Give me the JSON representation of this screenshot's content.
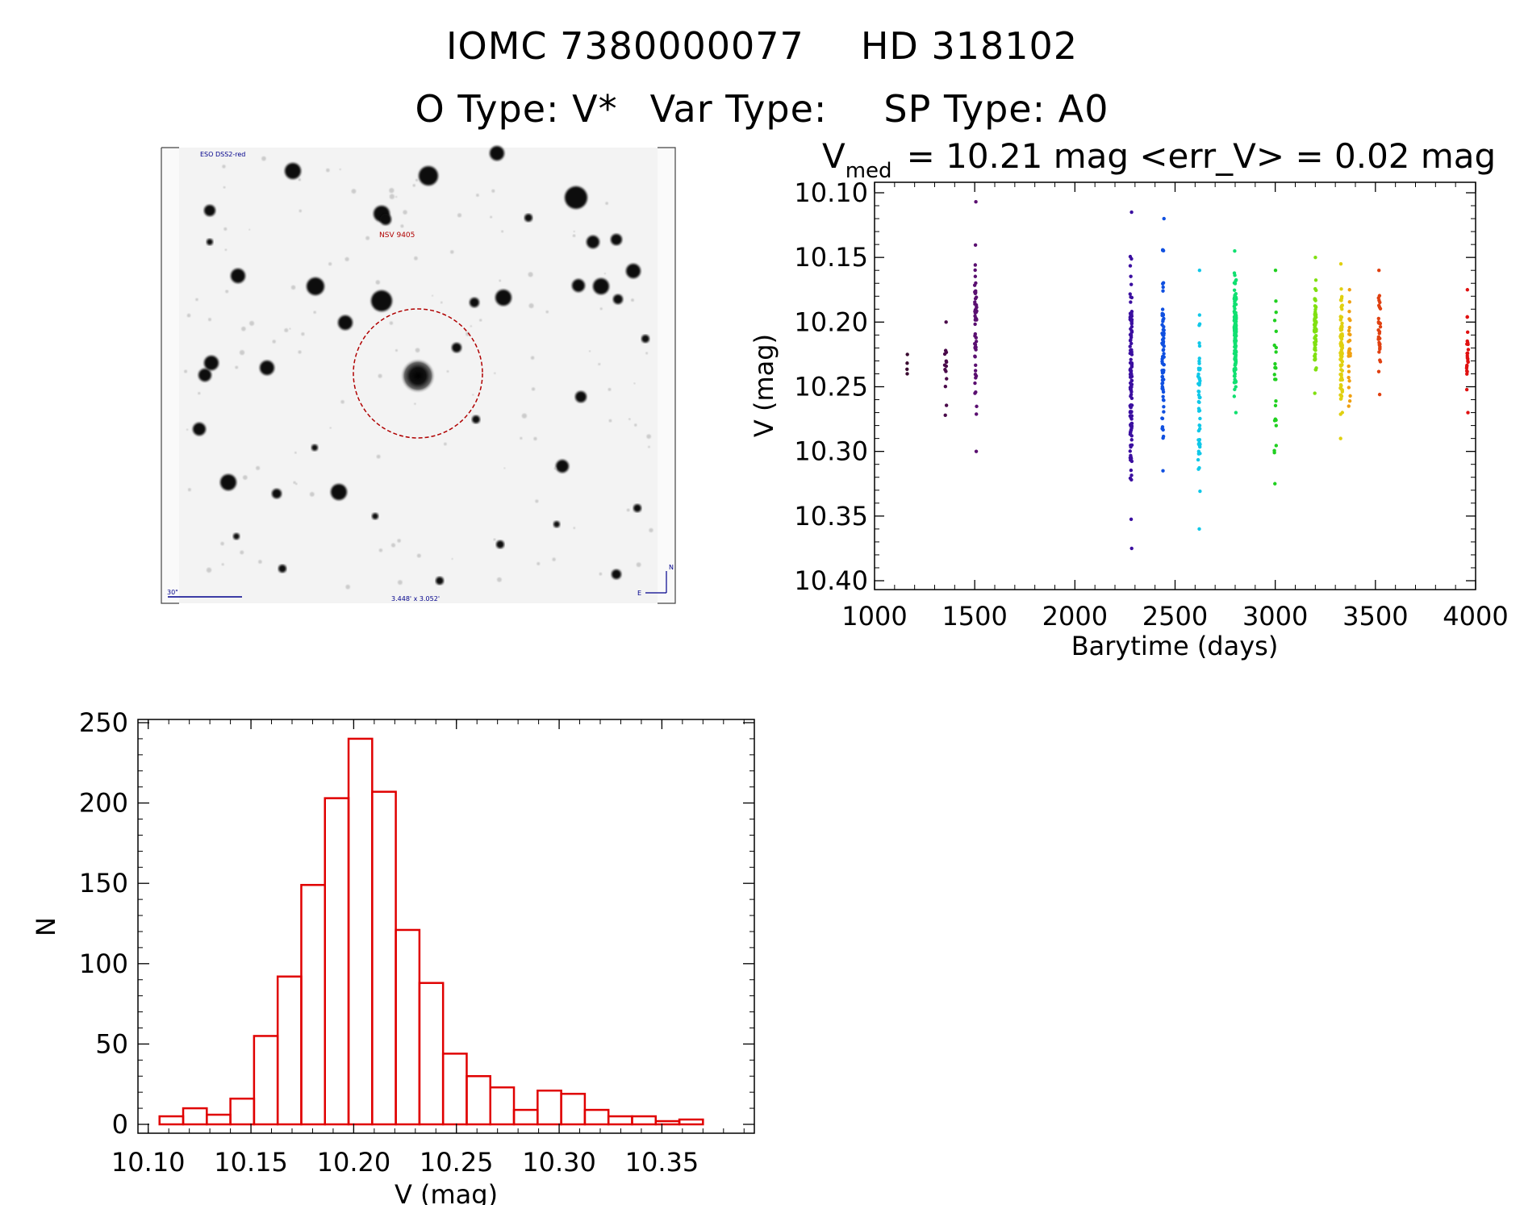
{
  "header": {
    "object_id": "IOMC 7380000077",
    "hd_name": "HD 318102",
    "o_type": "O Type: V*",
    "var_type": "Var Type:",
    "sp_type": "SP Type: A0"
  },
  "finder_image": {
    "survey_label": "ESO DSS2-red",
    "object_label": "NSV 9405",
    "scale_label": "30\"",
    "size_label": "3.448' x 3.052'",
    "compass_north": "N",
    "compass_east": "E"
  },
  "colors": {
    "histogram_bar": "#e00000",
    "axis": "#000000",
    "marker_circle": "#b00000"
  },
  "chart_data": [
    {
      "type": "scatter",
      "title_main": "V",
      "title_sub": "med",
      "title_rest": "= 10.21 mag <err_V> = 0.02 mag",
      "xlabel": "Barytime (days)",
      "ylabel": "V (mag)",
      "xlim": [
        1000,
        4000
      ],
      "ylim": [
        10.4,
        10.1
      ],
      "y_inverted": true,
      "xticks": [
        1000,
        1500,
        2000,
        2500,
        3000,
        3500,
        4000
      ],
      "yticks": [
        10.1,
        10.15,
        10.2,
        10.25,
        10.3,
        10.35,
        10.4
      ],
      "xtick_labels": [
        "1000",
        "1500",
        "2000",
        "2500",
        "3000",
        "3500",
        "4000"
      ],
      "ytick_labels": [
        "10.10",
        "10.15",
        "10.20",
        "10.25",
        "10.30",
        "10.35",
        "10.40"
      ],
      "groups": [
        {
          "t": 1160,
          "ymin": 10.225,
          "ymax": 10.24,
          "n": 4,
          "color": "#3a0a30"
        },
        {
          "t": 1355,
          "ymin": 10.2,
          "ymax": 10.272,
          "n": 14,
          "color": "#4a0a4a"
        },
        {
          "t": 1505,
          "ymin": 10.107,
          "ymax": 10.3,
          "n": 60,
          "color": "#5a0f70"
        },
        {
          "t": 2280,
          "ymin": 10.115,
          "ymax": 10.375,
          "n": 120,
          "color": "#3b0fa0"
        },
        {
          "t": 2440,
          "ymin": 10.12,
          "ymax": 10.315,
          "n": 80,
          "color": "#1050e0"
        },
        {
          "t": 2620,
          "ymin": 10.16,
          "ymax": 10.36,
          "n": 55,
          "color": "#10c8e8"
        },
        {
          "t": 2800,
          "ymin": 10.145,
          "ymax": 10.27,
          "n": 150,
          "color": "#10e070"
        },
        {
          "t": 3000,
          "ymin": 10.16,
          "ymax": 10.325,
          "n": 25,
          "color": "#20d020"
        },
        {
          "t": 3200,
          "ymin": 10.15,
          "ymax": 10.255,
          "n": 70,
          "color": "#80e010"
        },
        {
          "t": 3330,
          "ymin": 10.155,
          "ymax": 10.29,
          "n": 90,
          "color": "#e0d010"
        },
        {
          "t": 3370,
          "ymin": 10.175,
          "ymax": 10.265,
          "n": 30,
          "color": "#f0a010"
        },
        {
          "t": 3520,
          "ymin": 10.16,
          "ymax": 10.256,
          "n": 35,
          "color": "#e04010"
        },
        {
          "t": 3960,
          "ymin": 10.175,
          "ymax": 10.27,
          "n": 25,
          "color": "#e01010"
        }
      ]
    },
    {
      "type": "bar",
      "xlabel": "V (mag)",
      "ylabel": "N",
      "xlim": [
        10.095,
        10.395
      ],
      "ylim": [
        0,
        250
      ],
      "bin_width": 0.0115,
      "xticks": [
        10.1,
        10.15,
        10.2,
        10.25,
        10.3,
        10.35
      ],
      "xtick_labels": [
        "10.10",
        "10.15",
        "10.20",
        "10.25",
        "10.30",
        "10.35"
      ],
      "yticks": [
        0,
        50,
        100,
        150,
        200,
        250
      ],
      "ytick_labels": [
        "0",
        "50",
        "100",
        "150",
        "200",
        "250"
      ],
      "bin_starts": [
        10.1055,
        10.117,
        10.1285,
        10.14,
        10.1515,
        10.163,
        10.1745,
        10.186,
        10.1975,
        10.209,
        10.2205,
        10.232,
        10.2435,
        10.255,
        10.2665,
        10.278,
        10.2895,
        10.301,
        10.3125,
        10.324,
        10.3355,
        10.347,
        10.3585
      ],
      "counts": [
        5,
        10,
        6,
        16,
        55,
        92,
        149,
        203,
        240,
        207,
        121,
        88,
        44,
        30,
        23,
        9,
        21,
        19,
        9,
        5,
        5,
        2,
        3
      ]
    }
  ]
}
